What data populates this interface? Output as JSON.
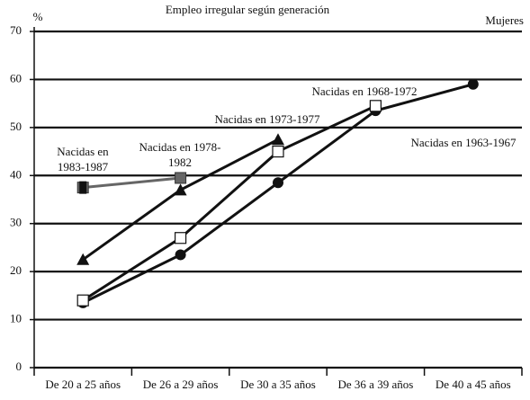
{
  "chart_data": {
    "type": "line",
    "title": "Empleo irregular según generación",
    "subtitle": "Mujeres",
    "y_label": "%",
    "categories": [
      "De 20 a 25 años",
      "De 26 a 29 años",
      "De 30 a 35 años",
      "De 36 a 39 años",
      "De 40 a 45 años"
    ],
    "series": [
      {
        "name": "Nacidas en 1963-1967",
        "color": "#111111",
        "marker": "circle",
        "values": [
          13.5,
          23.5,
          38.5,
          53.5,
          59
        ]
      },
      {
        "name": "Nacidas en 1968-1972",
        "color": "#111111",
        "marker": "square-open",
        "values": [
          14,
          27,
          45,
          54.5,
          null
        ]
      },
      {
        "name": "Nacidas en 1973-1977",
        "color": "#111111",
        "marker": "triangle",
        "values": [
          22.5,
          37,
          47.5,
          null,
          null
        ]
      },
      {
        "name": "Nacidas en 1978-1982",
        "color": "#666666",
        "marker": "square",
        "values": [
          37.5,
          39.5,
          null,
          null,
          null
        ]
      },
      {
        "name": "Nacidas en 1983-1987",
        "color": "#111111",
        "marker": "bar",
        "values": [
          37.5,
          null,
          null,
          null,
          null
        ]
      }
    ],
    "ylim": [
      0,
      70
    ],
    "yticks": [
      0,
      10,
      20,
      30,
      40,
      50,
      60,
      70
    ],
    "grid": true
  }
}
